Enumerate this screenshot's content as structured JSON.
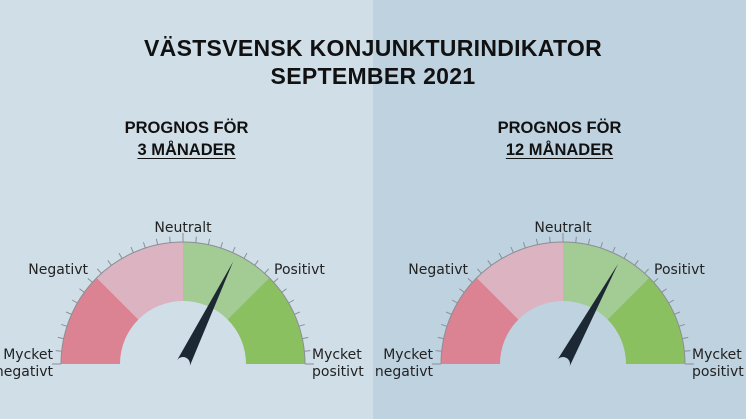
{
  "title": {
    "line1": "VÄSTSVENSK KONJUNKTURINDIKATOR",
    "line2": "SEPTEMBER 2021"
  },
  "colors": {
    "left_bg": "#d0dee8",
    "right_bg": "#bfd2e0",
    "mycket_negativt": "#dc8393",
    "negativt": "#dcb3c0",
    "positivt_light": "#a3cb94",
    "mycket_positivt": "#8bc060",
    "needle": "#1c2833",
    "ticks": "#8a8f95"
  },
  "scale_labels": {
    "very_negative_1": "Mycket",
    "very_negative_2": "negativt",
    "negative": "Negativt",
    "neutral": "Neutralt",
    "positive": "Positivt",
    "very_positive_1": "Mycket",
    "very_positive_2": "positivt"
  },
  "gauges": [
    {
      "heading": "PROGNOS FÖR",
      "period": "3 MÅNADER",
      "needle_fraction": 0.645
    },
    {
      "heading": "PROGNOS FÖR",
      "period": "12 MÅNADER",
      "needle_fraction": 0.66
    }
  ]
}
